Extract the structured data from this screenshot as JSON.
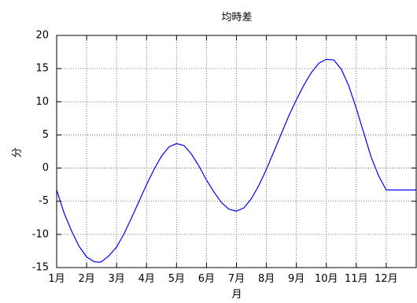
{
  "chart_data": {
    "type": "line",
    "title": "均時差",
    "xlabel": "月",
    "ylabel": "分",
    "x_tick_labels": [
      "1月",
      "2月",
      "3月",
      "4月",
      "5月",
      "6月",
      "7月",
      "8月",
      "9月",
      "10月",
      "11月",
      "12月"
    ],
    "y_ticks": [
      -15,
      -10,
      -5,
      0,
      5,
      10,
      15,
      20
    ],
    "xlim": [
      0,
      12
    ],
    "ylim": [
      -15,
      20
    ],
    "grid": true,
    "series": [
      {
        "color": "#0000ff",
        "x": [
          0,
          0.25,
          0.5,
          0.75,
          1.0,
          1.25,
          1.4,
          1.5,
          1.75,
          2.0,
          2.25,
          2.5,
          2.75,
          3.0,
          3.25,
          3.5,
          3.75,
          4.0,
          4.25,
          4.5,
          4.75,
          5.0,
          5.25,
          5.5,
          5.75,
          6.0,
          6.25,
          6.5,
          6.75,
          7.0,
          7.25,
          7.5,
          7.75,
          8.0,
          8.25,
          8.5,
          8.75,
          9.0,
          9.25,
          9.5,
          9.75,
          10.0,
          10.25,
          10.5,
          10.75,
          11.0,
          11.25,
          11.5,
          11.75,
          12.0
        ],
        "y": [
          -3.3,
          -6.8,
          -9.5,
          -11.8,
          -13.4,
          -14.1,
          -14.2,
          -14.1,
          -13.2,
          -11.9,
          -9.9,
          -7.5,
          -5.0,
          -2.5,
          -0.2,
          1.8,
          3.2,
          3.7,
          3.4,
          2.1,
          0.3,
          -1.8,
          -3.6,
          -5.2,
          -6.2,
          -6.5,
          -6.0,
          -4.6,
          -2.6,
          -0.2,
          2.5,
          5.2,
          7.9,
          10.3,
          12.5,
          14.4,
          15.8,
          16.4,
          16.3,
          14.9,
          12.4,
          9.0,
          5.3,
          1.6,
          -1.2,
          -3.3,
          -3.3,
          -3.3,
          -3.3,
          -3.3
        ]
      }
    ]
  }
}
